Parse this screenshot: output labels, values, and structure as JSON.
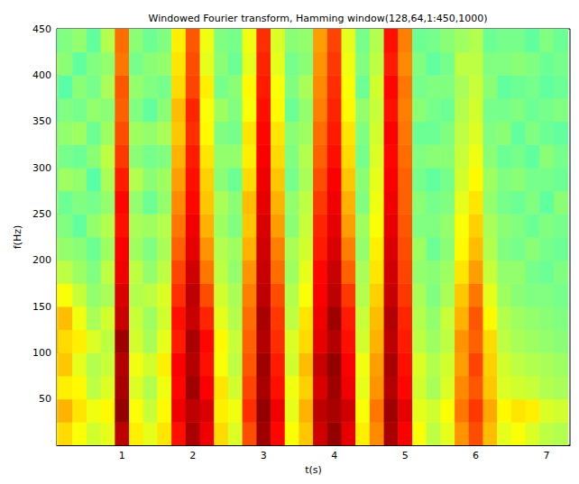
{
  "chart_data": {
    "type": "heatmap",
    "title": "Windowed Fourier transform, Hamming window(128,64,1:450,1000)",
    "x_label": "t(s)",
    "y_label": "f(Hz)",
    "xlim": [
      0.08,
      7.33
    ],
    "ylim": [
      0,
      450
    ],
    "xticks": [
      1,
      2,
      3,
      4,
      5,
      6,
      7
    ],
    "yticks": [
      50,
      100,
      150,
      200,
      250,
      300,
      350,
      400,
      450
    ],
    "grid": false,
    "t_edges": [
      -0.1,
      0.1,
      0.3,
      0.5,
      0.7,
      0.9,
      1.1,
      1.3,
      1.5,
      1.7,
      1.9,
      2.1,
      2.3,
      2.5,
      2.7,
      2.9,
      3.1,
      3.3,
      3.5,
      3.7,
      3.9,
      4.1,
      4.3,
      4.5,
      4.7,
      4.9,
      5.1,
      5.3,
      5.5,
      5.7,
      5.9,
      6.1,
      6.3,
      6.5,
      6.7,
      6.9,
      7.1,
      7.3
    ],
    "f_edges": [
      0,
      25,
      50,
      75,
      100,
      125,
      150,
      175,
      200,
      225,
      250,
      275,
      300,
      325,
      350,
      375,
      400,
      425,
      450
    ],
    "value_range": [
      0,
      10
    ],
    "cells": [
      [
        6.4,
        6.8,
        6.5,
        6.6,
        6.9,
        6.7,
        6.3,
        5.8,
        5.4,
        5.1,
        5.3,
        4.9,
        5.2,
        5.0,
        4.7,
        5.1,
        5.3,
        4.8
      ],
      [
        6.6,
        7.0,
        6.4,
        6.8,
        6.6,
        6.9,
        6.2,
        5.6,
        5.2,
        5.0,
        4.8,
        5.3,
        4.9,
        5.2,
        5.0,
        4.6,
        5.1,
        5.0
      ],
      [
        6.2,
        6.5,
        6.3,
        6.0,
        6.4,
        6.1,
        5.7,
        5.3,
        5.1,
        4.7,
        5.0,
        5.2,
        4.8,
        5.3,
        4.9,
        5.1,
        4.7,
        5.2
      ],
      [
        5.8,
        6.1,
        5.6,
        5.5,
        5.9,
        5.4,
        5.2,
        5.0,
        4.8,
        5.2,
        4.9,
        4.6,
        5.1,
        4.8,
        5.2,
        4.9,
        5.0,
        4.7
      ],
      [
        6.0,
        6.3,
        5.9,
        5.7,
        5.6,
        5.8,
        5.4,
        5.6,
        5.3,
        5.5,
        5.2,
        5.4,
        5.6,
        5.3,
        5.1,
        5.4,
        5.2,
        5.5
      ],
      [
        9.4,
        9.8,
        9.6,
        9.5,
        9.7,
        9.3,
        9.1,
        8.9,
        8.8,
        8.6,
        8.7,
        8.5,
        8.2,
        8.0,
        7.8,
        7.9,
        7.6,
        7.7
      ],
      [
        6.4,
        6.2,
        5.9,
        6.1,
        5.8,
        5.7,
        5.5,
        5.6,
        5.3,
        5.4,
        5.2,
        5.5,
        5.1,
        5.3,
        5.0,
        5.2,
        4.9,
        5.1
      ],
      [
        6.0,
        5.7,
        5.5,
        5.8,
        5.4,
        5.3,
        5.6,
        5.2,
        5.0,
        5.3,
        4.8,
        5.1,
        4.9,
        5.2,
        4.7,
        5.0,
        5.1,
        4.8
      ],
      [
        6.5,
        6.3,
        6.1,
        6.4,
        6.0,
        5.8,
        5.9,
        5.6,
        5.4,
        5.5,
        5.2,
        5.3,
        5.0,
        5.4,
        5.1,
        4.9,
        5.2,
        5.0
      ],
      [
        8.6,
        8.9,
        8.7,
        8.8,
        8.5,
        8.6,
        8.3,
        8.1,
        7.8,
        7.6,
        7.4,
        7.2,
        7.0,
        6.8,
        6.9,
        6.6,
        6.5,
        6.4
      ],
      [
        9.6,
        9.4,
        9.7,
        9.5,
        9.6,
        9.3,
        9.4,
        9.2,
        9.0,
        8.9,
        8.7,
        8.6,
        8.5,
        8.3,
        8.4,
        8.1,
        8.0,
        7.9
      ],
      [
        8.9,
        9.1,
        8.8,
        8.6,
        8.7,
        8.4,
        8.0,
        7.6,
        7.3,
        7.0,
        6.8,
        6.7,
        6.5,
        6.3,
        6.2,
        6.4,
        6.0,
        6.1
      ],
      [
        6.6,
        6.4,
        6.5,
        6.2,
        6.3,
        6.0,
        5.8,
        5.6,
        5.5,
        5.3,
        5.4,
        5.1,
        5.2,
        5.0,
        5.3,
        4.9,
        5.1,
        5.0
      ],
      [
        5.9,
        6.1,
        5.8,
        5.6,
        5.7,
        5.5,
        5.4,
        5.2,
        5.3,
        5.0,
        5.1,
        4.8,
        5.2,
        4.9,
        5.0,
        5.1,
        4.8,
        4.9
      ],
      [
        8.0,
        8.3,
        8.1,
        7.9,
        7.8,
        7.7,
        7.5,
        7.3,
        7.0,
        6.8,
        6.9,
        6.6,
        6.4,
        6.5,
        6.2,
        6.3,
        6.0,
        6.1
      ],
      [
        9.7,
        9.8,
        9.6,
        9.7,
        9.5,
        9.6,
        9.4,
        9.3,
        9.2,
        9.1,
        9.0,
        8.9,
        8.8,
        8.7,
        8.6,
        8.5,
        8.4,
        8.3
      ],
      [
        8.7,
        8.9,
        8.6,
        8.5,
        8.3,
        8.2,
        8.0,
        7.7,
        7.5,
        7.2,
        7.0,
        6.8,
        6.6,
        6.5,
        6.3,
        6.2,
        6.0,
        5.9
      ],
      [
        6.2,
        6.0,
        6.1,
        5.8,
        5.9,
        5.6,
        5.5,
        5.3,
        5.4,
        5.1,
        5.2,
        4.9,
        5.0,
        5.1,
        4.8,
        5.0,
        4.9,
        5.1
      ],
      [
        6.8,
        7.0,
        6.7,
        6.9,
        6.6,
        6.5,
        6.2,
        6.0,
        5.8,
        5.7,
        5.6,
        5.4,
        5.5,
        5.3,
        5.2,
        5.4,
        5.1,
        5.2
      ],
      [
        9.2,
        9.4,
        9.1,
        9.3,
        9.0,
        8.9,
        8.8,
        8.7,
        8.5,
        8.4,
        8.2,
        8.0,
        7.8,
        7.7,
        7.5,
        7.4,
        7.3,
        7.2
      ],
      [
        9.8,
        9.6,
        9.7,
        9.8,
        9.5,
        9.7,
        9.4,
        9.3,
        9.1,
        9.0,
        8.9,
        8.8,
        8.6,
        8.5,
        8.4,
        8.3,
        8.2,
        8.1
      ],
      [
        9.0,
        9.2,
        8.9,
        8.8,
        8.6,
        8.5,
        8.2,
        7.8,
        7.5,
        7.2,
        7.0,
        6.8,
        6.6,
        6.5,
        6.3,
        6.2,
        6.1,
        6.0
      ],
      [
        6.4,
        6.2,
        6.0,
        6.1,
        5.8,
        5.7,
        5.5,
        5.4,
        5.2,
        5.3,
        5.0,
        5.1,
        4.9,
        5.0,
        5.2,
        4.8,
        5.0,
        4.9
      ],
      [
        7.4,
        7.6,
        7.3,
        7.2,
        7.0,
        6.9,
        6.7,
        6.5,
        6.4,
        6.2,
        6.1,
        6.0,
        5.9,
        5.8,
        5.7,
        5.8,
        5.6,
        5.5
      ],
      [
        9.6,
        9.7,
        9.5,
        9.6,
        9.4,
        9.5,
        9.3,
        9.2,
        9.1,
        9.0,
        8.9,
        8.8,
        8.7,
        8.8,
        8.6,
        8.7,
        8.5,
        8.6
      ],
      [
        8.8,
        9.0,
        8.7,
        8.6,
        8.5,
        8.4,
        8.2,
        8.1,
        8.0,
        7.9,
        7.8,
        7.8,
        7.7,
        7.6,
        7.5,
        7.6,
        7.4,
        7.5
      ],
      [
        6.2,
        6.0,
        5.8,
        5.9,
        5.6,
        5.5,
        5.4,
        5.2,
        5.3,
        5.0,
        5.1,
        4.9,
        5.0,
        4.8,
        5.1,
        4.9,
        5.0,
        4.8
      ],
      [
        5.6,
        5.8,
        5.4,
        5.5,
        5.3,
        5.2,
        5.0,
        5.1,
        4.8,
        5.0,
        4.9,
        4.7,
        5.1,
        4.8,
        4.9,
        5.0,
        4.7,
        4.9
      ],
      [
        6.0,
        6.2,
        5.9,
        5.8,
        5.6,
        5.7,
        5.4,
        5.3,
        5.1,
        5.2,
        5.0,
        4.9,
        5.1,
        5.0,
        4.8,
        5.0,
        4.9,
        5.1
      ],
      [
        7.3,
        7.6,
        7.4,
        7.2,
        7.3,
        7.0,
        6.8,
        6.5,
        6.3,
        6.2,
        6.0,
        5.8,
        5.7,
        5.6,
        5.5,
        5.4,
        5.6,
        5.3
      ],
      [
        8.0,
        8.2,
        7.9,
        8.1,
        7.8,
        7.9,
        7.6,
        7.2,
        6.9,
        6.7,
        6.5,
        6.3,
        6.1,
        5.9,
        5.8,
        5.7,
        5.6,
        5.5
      ],
      [
        6.9,
        7.1,
        6.8,
        6.7,
        6.6,
        6.3,
        6.0,
        5.7,
        5.5,
        5.4,
        5.2,
        5.3,
        5.1,
        5.0,
        4.9,
        5.1,
        5.0,
        4.8
      ],
      [
        6.0,
        6.3,
        5.9,
        5.8,
        5.6,
        5.5,
        5.3,
        5.2,
        5.0,
        5.1,
        4.9,
        5.0,
        4.8,
        5.1,
        4.9,
        4.7,
        5.0,
        4.9
      ],
      [
        6.2,
        6.5,
        5.8,
        5.6,
        5.4,
        5.3,
        5.1,
        5.2,
        4.9,
        5.0,
        4.8,
        5.1,
        4.9,
        4.7,
        5.0,
        4.8,
        5.1,
        4.9
      ],
      [
        5.9,
        6.4,
        5.7,
        5.5,
        5.3,
        5.2,
        5.0,
        4.9,
        5.1,
        4.8,
        5.0,
        4.9,
        4.7,
        5.0,
        4.8,
        4.9,
        5.0,
        4.7
      ],
      [
        5.6,
        5.9,
        5.5,
        5.4,
        5.2,
        5.1,
        5.0,
        4.8,
        4.9,
        5.0,
        4.7,
        4.9,
        5.1,
        4.8,
        4.9,
        4.7,
        4.8,
        5.0
      ],
      [
        5.5,
        5.8,
        5.4,
        5.3,
        5.1,
        5.0,
        4.9,
        5.0,
        4.8,
        4.9,
        5.1,
        4.8,
        4.9,
        4.7,
        5.0,
        4.8,
        4.9,
        4.8
      ]
    ]
  }
}
